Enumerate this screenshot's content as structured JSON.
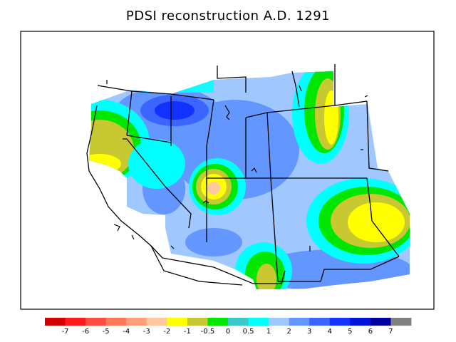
{
  "title": "PDSI reconstruction A.D. 1291",
  "legend": {
    "colors": [
      "#d20000",
      "#ff1a1a",
      "#ff4c40",
      "#ff7a55",
      "#ffa07a",
      "#ffc8a0",
      "#ffff00",
      "#c8c832",
      "#00e600",
      "#3cc8c8",
      "#00ffff",
      "#a0c8ff",
      "#6496ff",
      "#3c64ff",
      "#1432ff",
      "#0014dc",
      "#0000a0",
      "#808080"
    ],
    "labels": [
      "-7",
      "-6",
      "-5",
      "-4",
      "-3",
      "-2",
      "-1",
      "-0.5",
      "0",
      "0.5",
      "1",
      "2",
      "3",
      "4",
      "5",
      "6",
      "7"
    ]
  }
}
